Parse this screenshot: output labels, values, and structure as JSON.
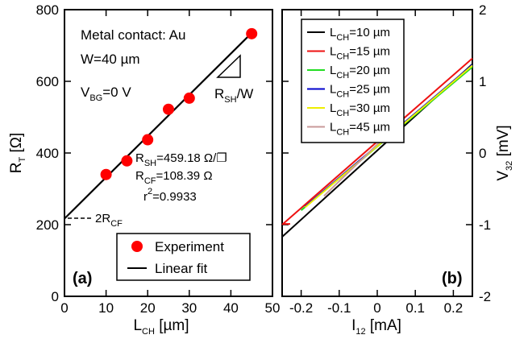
{
  "chart_data": [
    {
      "type": "scatter",
      "panel_label": "(a)",
      "xlabel": "L",
      "xlabel_sub": "CH",
      "xlabel_unit": " [µm]",
      "ylabel": "R",
      "ylabel_sub": "T",
      "ylabel_unit": " [Ω]",
      "xlim": [
        0,
        50
      ],
      "ylim": [
        0,
        800
      ],
      "xticks": [
        "0",
        "10",
        "20",
        "30",
        "40",
        "50"
      ],
      "yticks": [
        "0",
        "200",
        "400",
        "600",
        "800"
      ],
      "series": [
        {
          "name": "Experiment",
          "mode": "markers",
          "color": "#ff0000",
          "x": [
            10,
            15,
            20,
            25,
            30,
            45
          ],
          "y": [
            340,
            378,
            437,
            522,
            553,
            733
          ]
        },
        {
          "name": "Linear fit",
          "mode": "line",
          "color": "#000000",
          "x": [
            0,
            45
          ],
          "y": [
            216.8,
            735.0
          ]
        }
      ],
      "annotations": {
        "metal": "Metal contact: Au",
        "width": "W=40 µm",
        "vbg_main": "V",
        "vbg_sub": "BG",
        "vbg_rest": "=0 V",
        "slope_main": "R",
        "slope_sub": "SH",
        "slope_rest": "/W",
        "rsh_main": "R",
        "rsh_sub": "SH",
        "rsh_rest": "=459.18 Ω/❐",
        "rcf_main": "R",
        "rcf_sub": "CF",
        "rcf_rest": "=108.39 Ω",
        "r2_main": "r",
        "r2_sup": "2",
        "r2_rest": "=0.9933",
        "intercept_main": "2R",
        "intercept_sub": "CF"
      },
      "legend_placement": "bottom-center"
    },
    {
      "type": "line",
      "panel_label": "(b)",
      "xlabel": "I",
      "xlabel_sub": "12",
      "xlabel_unit": " [mA]",
      "ylabel": "V",
      "ylabel_sub": "32",
      "ylabel_unit": " [mV]",
      "xlim": [
        -0.25,
        0.25
      ],
      "ylim": [
        -2,
        2
      ],
      "xticks": [
        "-0.2",
        "-0.1",
        "0",
        "0.1",
        "0.2"
      ],
      "yticks": [
        "-2",
        "-1",
        "0",
        "1",
        "2"
      ],
      "series": [
        {
          "name_main": "L",
          "name_sub": "CH",
          "name_rest": "=10 µm",
          "color": "#000000",
          "x": [
            -0.25,
            0.25
          ],
          "y": [
            -1.17,
            1.24
          ]
        },
        {
          "name_main": "L",
          "name_sub": "CH",
          "name_rest": "=15 µm",
          "color": "#ee1111",
          "x": [
            -0.25,
            0.25
          ],
          "y": [
            -1.0,
            1.32
          ]
        },
        {
          "name_main": "L",
          "name_sub": "CH",
          "name_rest": "=20 µm",
          "color": "#22dd22",
          "x": [
            -0.2,
            0.25
          ],
          "y": [
            -0.8,
            1.2
          ]
        },
        {
          "name_main": "L",
          "name_sub": "CH",
          "name_rest": "=25 µm",
          "color": "#0000cc",
          "x": [
            -0.19,
            0.25
          ],
          "y": [
            -0.75,
            1.23
          ]
        },
        {
          "name_main": "L",
          "name_sub": "CH",
          "name_rest": "=30 µm",
          "color": "#eeee00",
          "x": [
            -0.19,
            0.25
          ],
          "y": [
            -0.76,
            1.22
          ]
        },
        {
          "name_main": "L",
          "name_sub": "CH",
          "name_rest": "=45 µm",
          "color": "#c89a9a",
          "x": [
            -0.14,
            0.07
          ],
          "y": [
            -0.6,
            0.48
          ]
        }
      ],
      "legend_placement": "top-left"
    }
  ]
}
